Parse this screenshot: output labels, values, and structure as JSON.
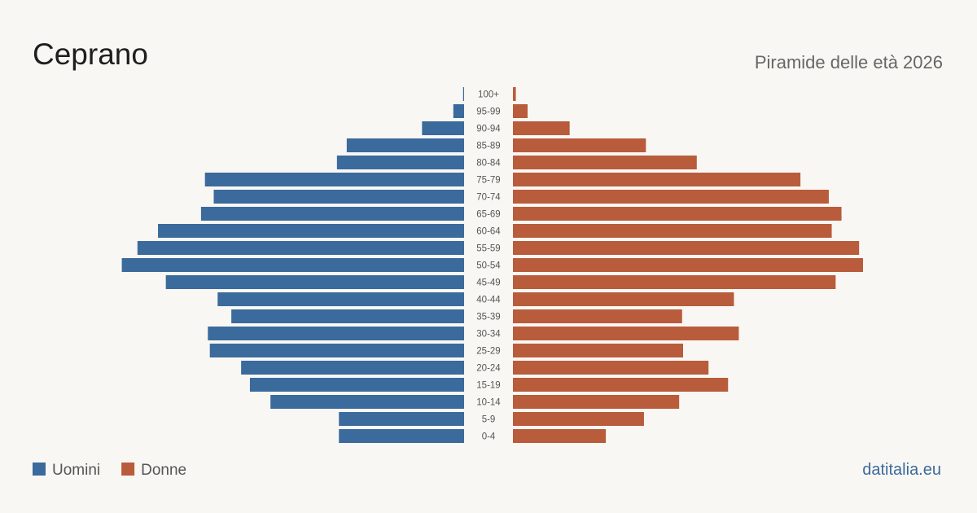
{
  "chart_data": {
    "type": "pyramid",
    "title": "Ceprano",
    "subtitle": "Piramide delle età 2026",
    "source": "datitalia.eu",
    "categories": [
      "100+",
      "95-99",
      "90-94",
      "85-89",
      "80-84",
      "75-79",
      "70-74",
      "65-69",
      "60-64",
      "55-59",
      "50-54",
      "45-49",
      "40-44",
      "35-39",
      "30-34",
      "25-29",
      "20-24",
      "15-19",
      "10-14",
      "5-9",
      "0-4"
    ],
    "series": [
      {
        "name": "Uomini",
        "color": "#3b6a9c",
        "values": [
          1,
          11,
          43,
          120,
          130,
          265,
          256,
          269,
          313,
          334,
          350,
          305,
          252,
          238,
          262,
          260,
          228,
          219,
          198,
          128,
          128
        ]
      },
      {
        "name": "Donne",
        "color": "#b85c3c",
        "values": [
          3,
          15,
          58,
          136,
          188,
          294,
          323,
          336,
          326,
          354,
          358,
          330,
          226,
          173,
          231,
          174,
          200,
          220,
          170,
          134,
          95
        ]
      }
    ]
  }
}
